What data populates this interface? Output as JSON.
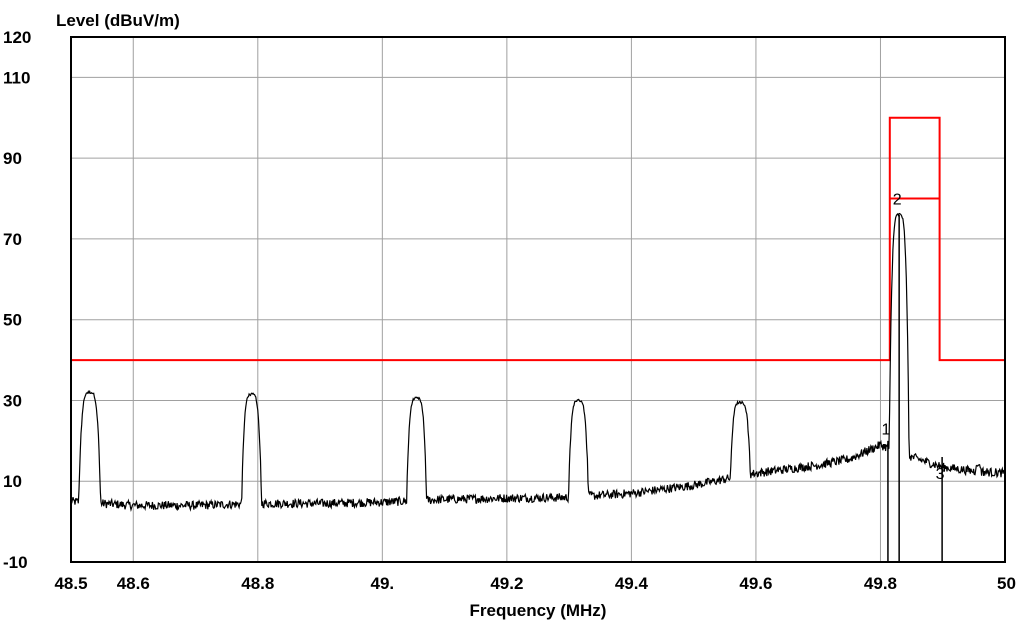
{
  "chart_data": {
    "type": "line",
    "ylabel": "Level (dBuV/m)",
    "xlabel": "Frequency (MHz)",
    "xlim": [
      48.5,
      50.0
    ],
    "ylim": [
      -10,
      120
    ],
    "x_tick_labels": [
      {
        "x": 48.5,
        "label": "48.5"
      },
      {
        "x": 48.6,
        "label": "48.6"
      },
      {
        "x": 48.8,
        "label": "48.8"
      },
      {
        "x": 49.0,
        "label": "49."
      },
      {
        "x": 49.2,
        "label": "49.2"
      },
      {
        "x": 49.4,
        "label": "49.4"
      },
      {
        "x": 49.6,
        "label": "49.6"
      },
      {
        "x": 49.8,
        "label": "49.8"
      },
      {
        "x": 50.0,
        "label": "50"
      }
    ],
    "y_tick_labels": [
      {
        "y": 120,
        "label": "120"
      },
      {
        "y": 110,
        "label": "110"
      },
      {
        "y": 90,
        "label": "90"
      },
      {
        "y": 70,
        "label": "70"
      },
      {
        "y": 50,
        "label": "50"
      },
      {
        "y": 30,
        "label": "30"
      },
      {
        "y": 10,
        "label": "10"
      },
      {
        "y": -10,
        "label": "-10"
      }
    ],
    "grid": true,
    "colors": {
      "trace": "#000000",
      "limit": "#ff0000",
      "grid": "#a0a0a0",
      "frame": "#000000"
    },
    "series": [
      {
        "role": "measured-spectrum",
        "noise_floor": [
          [
            48.5,
            5
          ],
          [
            48.6,
            4
          ],
          [
            48.7,
            4
          ],
          [
            48.8,
            4.5
          ],
          [
            48.9,
            4.5
          ],
          [
            49.0,
            4.8
          ],
          [
            49.1,
            5.5
          ],
          [
            49.2,
            5.8
          ],
          [
            49.3,
            6
          ],
          [
            49.4,
            7
          ],
          [
            49.5,
            9
          ],
          [
            49.6,
            12
          ],
          [
            49.7,
            14
          ],
          [
            49.75,
            15.5
          ],
          [
            49.8,
            19
          ],
          [
            49.85,
            16
          ],
          [
            49.9,
            13.5
          ],
          [
            49.95,
            12.5
          ],
          [
            50.0,
            12
          ]
        ],
        "peaks": [
          {
            "x": 48.53,
            "y": 32,
            "w": 0.011
          },
          {
            "x": 48.79,
            "y": 31.5,
            "w": 0.01
          },
          {
            "x": 49.055,
            "y": 30.5,
            "w": 0.01
          },
          {
            "x": 49.315,
            "y": 30,
            "w": 0.01
          },
          {
            "x": 49.575,
            "y": 29.5,
            "w": 0.01
          },
          {
            "x": 49.83,
            "y": 76,
            "w": 0.01
          },
          {
            "x": 49.957,
            "y": 14,
            "w": 0.003
          }
        ]
      },
      {
        "role": "limit-line",
        "points": [
          [
            48.5,
            40
          ],
          [
            49.815,
            40
          ],
          [
            49.815,
            100
          ],
          [
            49.895,
            100
          ],
          [
            49.895,
            40
          ],
          [
            50.0,
            40
          ]
        ],
        "segments": [
          [
            [
              49.815,
              80
            ],
            [
              49.895,
              80
            ]
          ]
        ]
      }
    ],
    "markers": [
      {
        "label": "1",
        "x": 49.812,
        "y": 20,
        "label_y": 23
      },
      {
        "label": "2",
        "x": 49.83,
        "y": 76,
        "label_y": 80
      },
      {
        "label": "3",
        "x": 49.899,
        "y": 16,
        "label_y": 12
      }
    ]
  }
}
